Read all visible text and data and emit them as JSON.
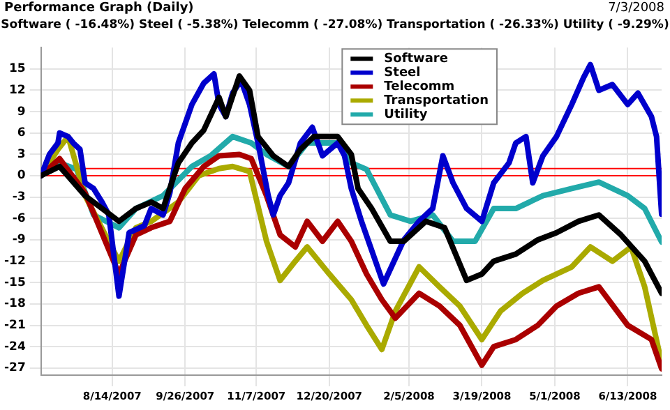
{
  "chart_data": {
    "type": "line",
    "title": "Performance Graph (Daily)",
    "subtitle": "Software ( -16.48%)  Steel ( -5.38%)  Telecomm ( -27.08%)  Transportation ( -26.33%)  Utility ( -9.29%)",
    "annotations": [
      "7/3/2008"
    ],
    "xlim": [
      "2007-07-03",
      "2008-07-03"
    ],
    "xticks": [
      {
        "value": "2007-08-14",
        "label": "8/14/2007"
      },
      {
        "value": "2007-09-26",
        "label": "9/26/2007"
      },
      {
        "value": "2007-11-07",
        "label": "11/7/2007"
      },
      {
        "value": "2007-12-20",
        "label": "12/20/2007"
      },
      {
        "value": "2008-02-05",
        "label": "2/5/2008"
      },
      {
        "value": "2008-03-19",
        "label": "3/19/2008"
      },
      {
        "value": "2008-05-01",
        "label": "5/1/2008"
      },
      {
        "value": "2008-06-13",
        "label": "6/13/2008"
      }
    ],
    "ylim": [
      -28,
      18
    ],
    "yticks": [
      -27,
      -24,
      -21,
      -18,
      -15,
      -12,
      -9,
      -6,
      -3,
      0,
      3,
      6,
      9,
      12,
      15
    ],
    "grid": true,
    "legend": "top right",
    "marker": "none",
    "line_style": "solid",
    "ref_lines": [
      {
        "axis": "y",
        "value": 0,
        "color": "#ff0000"
      },
      {
        "axis": "y",
        "value": 1,
        "color": "#ff0000"
      }
    ],
    "series": [
      {
        "name": "Software",
        "color": "#000000",
        "x": [
          "2007-07-03",
          "2007-07-14",
          "2007-07-29",
          "2007-08-18",
          "2007-08-28",
          "2007-09-06",
          "2007-09-13",
          "2007-09-22",
          "2007-09-30",
          "2007-10-07",
          "2007-10-16",
          "2007-10-20",
          "2007-10-28",
          "2007-11-03",
          "2007-11-08",
          "2007-11-17",
          "2007-11-26",
          "2007-12-03",
          "2007-12-11",
          "2007-12-25",
          "2008-01-02",
          "2008-01-06",
          "2008-01-14",
          "2008-01-25",
          "2008-02-02",
          "2008-02-15",
          "2008-02-26",
          "2008-03-10",
          "2008-03-19",
          "2008-03-26",
          "2008-04-08",
          "2008-04-21",
          "2008-05-02",
          "2008-05-15",
          "2008-05-27",
          "2008-06-09",
          "2008-06-23",
          "2008-07-03"
        ],
        "values": [
          0,
          1.3,
          -2.8,
          -6.4,
          -4.6,
          -3.7,
          -4.6,
          1.8,
          4.6,
          6.4,
          11,
          8.3,
          14,
          12,
          5.5,
          2.8,
          1.3,
          3.7,
          5.5,
          5.5,
          3,
          -1.8,
          -4.6,
          -9.2,
          -9.2,
          -6.4,
          -7.3,
          -14.7,
          -13.8,
          -12,
          -11,
          -9,
          -8,
          -6.4,
          -5.5,
          -8.3,
          -12,
          -16.5
        ]
      },
      {
        "name": "Steel",
        "color": "#0000cc",
        "x": [
          "2007-07-03",
          "2007-07-08",
          "2007-07-13",
          "2007-07-14",
          "2007-07-19",
          "2007-07-22",
          "2007-07-26",
          "2007-07-29",
          "2007-08-03",
          "2007-08-08",
          "2007-08-12",
          "2007-08-18",
          "2007-08-24",
          "2007-09-02",
          "2007-09-06",
          "2007-09-13",
          "2007-09-17",
          "2007-09-22",
          "2007-09-30",
          "2007-10-07",
          "2007-10-13",
          "2007-10-16",
          "2007-10-20",
          "2007-10-24",
          "2007-10-29",
          "2007-11-03",
          "2007-11-08",
          "2007-11-14",
          "2007-11-17",
          "2007-11-21",
          "2007-11-26",
          "2007-12-03",
          "2007-12-10",
          "2007-12-16",
          "2007-12-25",
          "2007-12-29",
          "2008-01-02",
          "2008-01-08",
          "2008-01-21",
          "2008-02-02",
          "2008-02-11",
          "2008-02-19",
          "2008-02-25",
          "2008-03-02",
          "2008-03-10",
          "2008-03-19",
          "2008-03-26",
          "2008-04-04",
          "2008-04-08",
          "2008-04-14",
          "2008-04-18",
          "2008-04-24",
          "2008-05-02",
          "2008-05-11",
          "2008-05-18",
          "2008-05-22",
          "2008-05-27",
          "2008-06-04",
          "2008-06-13",
          "2008-06-19",
          "2008-06-27",
          "2008-06-30",
          "2008-07-03"
        ],
        "values": [
          0,
          3,
          4.6,
          6,
          5.5,
          4.6,
          3.7,
          -1,
          -1.8,
          -3.7,
          -5.5,
          -16.9,
          -8,
          -7,
          -4.6,
          -5.5,
          -2.4,
          4.6,
          10,
          13,
          14.3,
          10,
          8.3,
          11.6,
          13.4,
          10,
          4.6,
          -2.8,
          -5.5,
          -2.8,
          -1,
          4.6,
          6.8,
          2.8,
          4.6,
          2.8,
          -1.8,
          -6.4,
          -15.2,
          -9,
          -6.4,
          -4.6,
          2.8,
          -1,
          -4.6,
          -6.4,
          -1,
          1.8,
          4.6,
          5.5,
          -1,
          2.8,
          5.5,
          10,
          13.8,
          15.6,
          12,
          12.8,
          10,
          11.6,
          8.3,
          5.5,
          -5.4
        ]
      },
      {
        "name": "Telecomm",
        "color": "#aa0000",
        "x": [
          "2007-07-03",
          "2007-07-14",
          "2007-07-29",
          "2007-08-18",
          "2007-08-28",
          "2007-09-06",
          "2007-09-17",
          "2007-09-26",
          "2007-10-07",
          "2007-10-16",
          "2007-10-28",
          "2007-11-04",
          "2007-11-13",
          "2007-11-21",
          "2007-11-30",
          "2007-12-07",
          "2007-12-16",
          "2007-12-25",
          "2008-01-02",
          "2008-01-11",
          "2008-01-20",
          "2008-01-28",
          "2008-02-11",
          "2008-02-23",
          "2008-03-06",
          "2008-03-19",
          "2008-03-26",
          "2008-04-08",
          "2008-04-21",
          "2008-05-02",
          "2008-05-15",
          "2008-05-27",
          "2008-06-13",
          "2008-06-27",
          "2008-07-03"
        ],
        "values": [
          0,
          2.4,
          -2.4,
          -13.8,
          -8.3,
          -7.3,
          -6.4,
          -1.8,
          1.3,
          2.8,
          3,
          2.4,
          -2.8,
          -8.3,
          -10,
          -6.4,
          -9.2,
          -6.4,
          -9.2,
          -13.8,
          -17.4,
          -20,
          -16.5,
          -18.3,
          -21,
          -26.6,
          -24,
          -23,
          -21,
          -18.3,
          -16.5,
          -15.6,
          -21,
          -23,
          -27.1
        ]
      },
      {
        "name": "Transportation",
        "color": "#aaaa00",
        "x": [
          "2007-07-03",
          "2007-07-13",
          "2007-07-19",
          "2007-07-29",
          "2007-08-18",
          "2007-08-28",
          "2007-09-06",
          "2007-09-22",
          "2007-10-04",
          "2007-10-16",
          "2007-10-24",
          "2007-11-03",
          "2007-11-13",
          "2007-11-21",
          "2007-11-30",
          "2007-12-07",
          "2007-12-20",
          "2008-01-02",
          "2008-01-11",
          "2008-01-20",
          "2008-01-28",
          "2008-02-11",
          "2008-02-23",
          "2008-03-06",
          "2008-03-19",
          "2008-03-30",
          "2008-04-12",
          "2008-04-24",
          "2008-05-11",
          "2008-05-22",
          "2008-06-04",
          "2008-06-15",
          "2008-06-23",
          "2008-07-03"
        ],
        "values": [
          0,
          3.7,
          5.5,
          -2.8,
          -12,
          -7.3,
          -6.4,
          -3.7,
          0,
          1,
          1.3,
          0.6,
          -9.2,
          -14.7,
          -12,
          -10,
          -13.8,
          -17.4,
          -21,
          -24.4,
          -19,
          -12.8,
          -15.6,
          -18.3,
          -23,
          -19,
          -16.5,
          -14.7,
          -12.8,
          -10,
          -12,
          -10,
          -15.6,
          -26.3
        ]
      },
      {
        "name": "Utility",
        "color": "#22aaaa",
        "x": [
          "2007-07-03",
          "2007-07-14",
          "2007-07-24",
          "2007-08-03",
          "2007-08-18",
          "2007-08-28",
          "2007-09-13",
          "2007-09-30",
          "2007-10-11",
          "2007-10-24",
          "2007-11-04",
          "2007-11-13",
          "2007-11-26",
          "2007-12-07",
          "2007-12-25",
          "2008-01-02",
          "2008-01-11",
          "2008-01-25",
          "2008-02-06",
          "2008-02-19",
          "2008-03-02",
          "2008-03-15",
          "2008-03-26",
          "2008-04-08",
          "2008-04-24",
          "2008-05-11",
          "2008-05-27",
          "2008-06-13",
          "2008-06-23",
          "2008-07-03"
        ],
        "values": [
          0,
          1.8,
          0.9,
          -5.5,
          -7.3,
          -4.6,
          -2.8,
          1.3,
          2.8,
          5.5,
          4.6,
          3,
          1.3,
          4.6,
          4.6,
          1.8,
          0.9,
          -5.5,
          -6.4,
          -5.5,
          -9.2,
          -9.2,
          -4.6,
          -4.6,
          -2.8,
          -1.8,
          -0.9,
          -2.8,
          -4.6,
          -9.3
        ]
      }
    ]
  }
}
